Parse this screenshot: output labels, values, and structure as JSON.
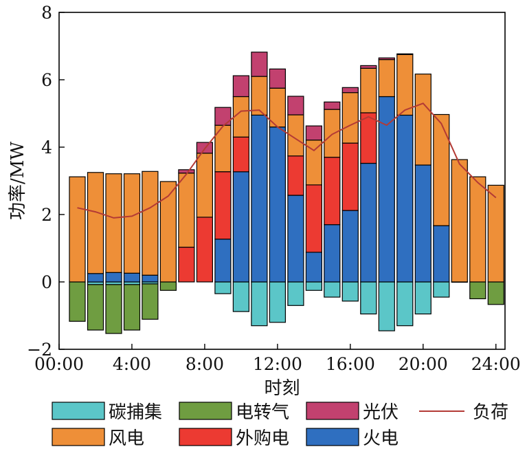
{
  "chart_data": {
    "type": "bar",
    "stacked": true,
    "xlabel": "时刻",
    "ylabel": "功率/MW",
    "ylim": [
      -2,
      8
    ],
    "xlim": [
      0,
      24.5
    ],
    "yticks": [
      -2,
      0,
      2,
      4,
      6,
      8
    ],
    "xticks": [
      0,
      4,
      8,
      12,
      16,
      20,
      24
    ],
    "xtick_labels": [
      "00:00",
      "4:00",
      "8:00",
      "12:00",
      "16:00",
      "20:00",
      "24:00"
    ],
    "categories": [
      1,
      2,
      3,
      4,
      5,
      6,
      7,
      8,
      9,
      10,
      11,
      12,
      13,
      14,
      15,
      16,
      17,
      18,
      19,
      20,
      21,
      22,
      23,
      24
    ],
    "series": [
      {
        "name": "碳捕集",
        "color": "#5BC6C8",
        "values": [
          0,
          -0.08,
          -0.08,
          -0.08,
          -0.06,
          0,
          0,
          0,
          -0.35,
          -0.88,
          -1.3,
          -1.2,
          -0.7,
          -0.25,
          -0.45,
          -0.57,
          -0.95,
          -1.45,
          -1.3,
          -0.95,
          -0.45,
          0,
          0,
          0
        ]
      },
      {
        "name": "电转气",
        "color": "#6F9D41",
        "values": [
          -1.17,
          -1.35,
          -1.45,
          -1.35,
          -1.05,
          -0.25,
          0,
          0,
          0,
          0,
          0,
          0,
          0,
          0,
          0,
          0,
          0,
          0,
          0,
          0,
          0,
          -0.01,
          -0.5,
          -0.67
        ]
      },
      {
        "name": "火电",
        "color": "#2F6FC0",
        "values": [
          0,
          0.25,
          0.28,
          0.26,
          0.2,
          0,
          0,
          0,
          1.27,
          3.27,
          4.95,
          4.6,
          2.57,
          0.88,
          1.7,
          2.12,
          3.52,
          5.5,
          4.95,
          3.47,
          1.67,
          0,
          0,
          0
        ]
      },
      {
        "name": "外购电",
        "color": "#EC3A32",
        "values": [
          0,
          0,
          0,
          0,
          0,
          0,
          1.03,
          1.92,
          2.0,
          1.03,
          0,
          0,
          1.17,
          2.0,
          2.0,
          2.0,
          1.5,
          0,
          0,
          0,
          0,
          0,
          0,
          0
        ]
      },
      {
        "name": "风电",
        "color": "#EE8F38",
        "values": [
          3.12,
          3.0,
          2.93,
          2.95,
          3.08,
          2.98,
          2.2,
          1.9,
          1.38,
          1.2,
          1.15,
          1.15,
          1.22,
          1.33,
          1.42,
          1.5,
          1.32,
          1.1,
          1.8,
          2.7,
          3.3,
          3.63,
          3.12,
          2.87
        ]
      },
      {
        "name": "光伏",
        "color": "#C2416F",
        "values": [
          0,
          0,
          0,
          0,
          0,
          0,
          0.1,
          0.32,
          0.53,
          0.62,
          0.72,
          0.57,
          0.55,
          0.42,
          0.22,
          0.15,
          0.08,
          0.05,
          0.02,
          0,
          0,
          0,
          0,
          0
        ]
      }
    ],
    "load": {
      "name": "负荷",
      "color": "#B33A35",
      "values": [
        2.2,
        2.08,
        1.9,
        1.95,
        2.2,
        2.55,
        3.2,
        3.95,
        4.62,
        5.07,
        5.1,
        4.6,
        4.25,
        3.9,
        4.38,
        4.65,
        4.9,
        4.65,
        5.1,
        5.3,
        4.7,
        3.5,
        2.95,
        2.5
      ]
    },
    "legend": {
      "rows": [
        [
          {
            "key": "碳捕集",
            "kind": "patch"
          },
          {
            "key": "电转气",
            "kind": "patch"
          },
          {
            "key": "光伏",
            "kind": "patch"
          },
          {
            "key": "负荷",
            "kind": "line"
          }
        ],
        [
          {
            "key": "风电",
            "kind": "patch"
          },
          {
            "key": "外购电",
            "kind": "patch"
          },
          {
            "key": "火电",
            "kind": "patch"
          }
        ]
      ],
      "placement": "bottom"
    }
  }
}
